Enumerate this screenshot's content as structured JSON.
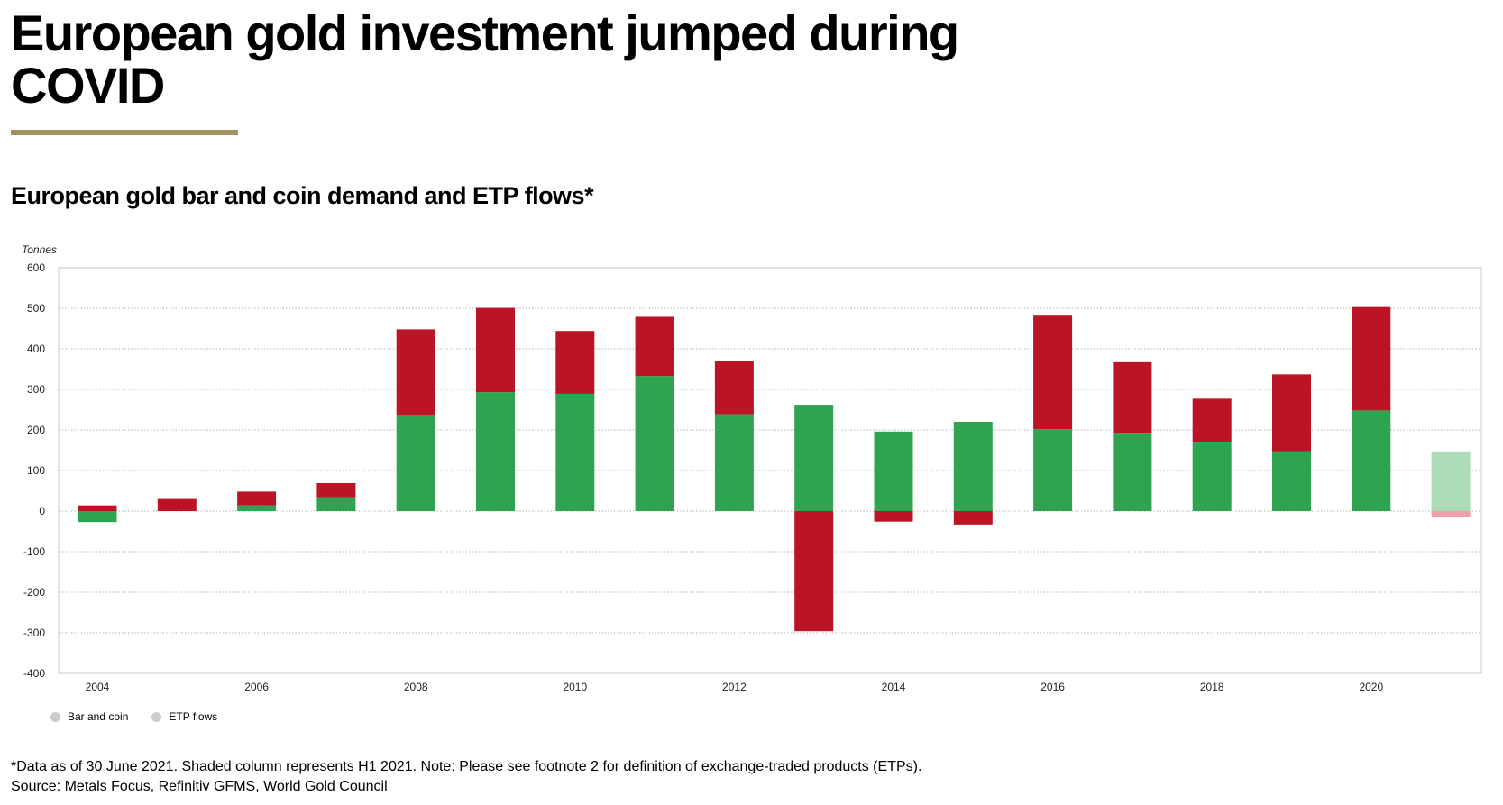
{
  "header": {
    "headline": "European gold investment jumped during COVID",
    "chart_title": "European gold bar and coin demand and ETP flows*"
  },
  "footer": {
    "note": "*Data as of 30 June 2021. Shaded column represents H1 2021. Note: Please see footnote 2 for definition of exchange-traded products (ETPs).",
    "source": "Source: Metals Focus, Refinitiv GFMS, World Gold Council"
  },
  "colors": {
    "bar_and_coin": "#2ea451",
    "etp_flows": "#bb1426",
    "bar_and_coin_shaded": "#abdcb5",
    "etp_flows_shaded": "#eea1aa",
    "rule": "#a39161",
    "legend_marker": "#cccccc"
  },
  "chart_data": {
    "type": "bar",
    "stacked": true,
    "ylabel": "Tonnes",
    "ylim": [
      -400,
      600
    ],
    "yticks": [
      600,
      500,
      400,
      300,
      200,
      100,
      0,
      -100,
      -200,
      -300,
      -400
    ],
    "x": [
      2004,
      2005,
      2006,
      2007,
      2008,
      2009,
      2010,
      2011,
      2012,
      2013,
      2014,
      2015,
      2016,
      2017,
      2018,
      2019,
      2020,
      2021
    ],
    "xtick_labels": [
      "2004",
      "2006",
      "2008",
      "2010",
      "2012",
      "2014",
      "2016",
      "2018",
      "2020"
    ],
    "shaded_category": 2021,
    "grid": true,
    "legend_position": "bottom-left",
    "series": [
      {
        "name": "Bar and coin",
        "values": [
          -27,
          0,
          14,
          34,
          237,
          293,
          289,
          333,
          239,
          262,
          196,
          220,
          202,
          193,
          171,
          147,
          248,
          147
        ]
      },
      {
        "name": "ETP flows",
        "values": [
          14,
          32,
          34,
          35,
          211,
          208,
          155,
          146,
          132,
          -296,
          -26,
          -33,
          282,
          174,
          106,
          190,
          255,
          -15
        ]
      }
    ]
  }
}
